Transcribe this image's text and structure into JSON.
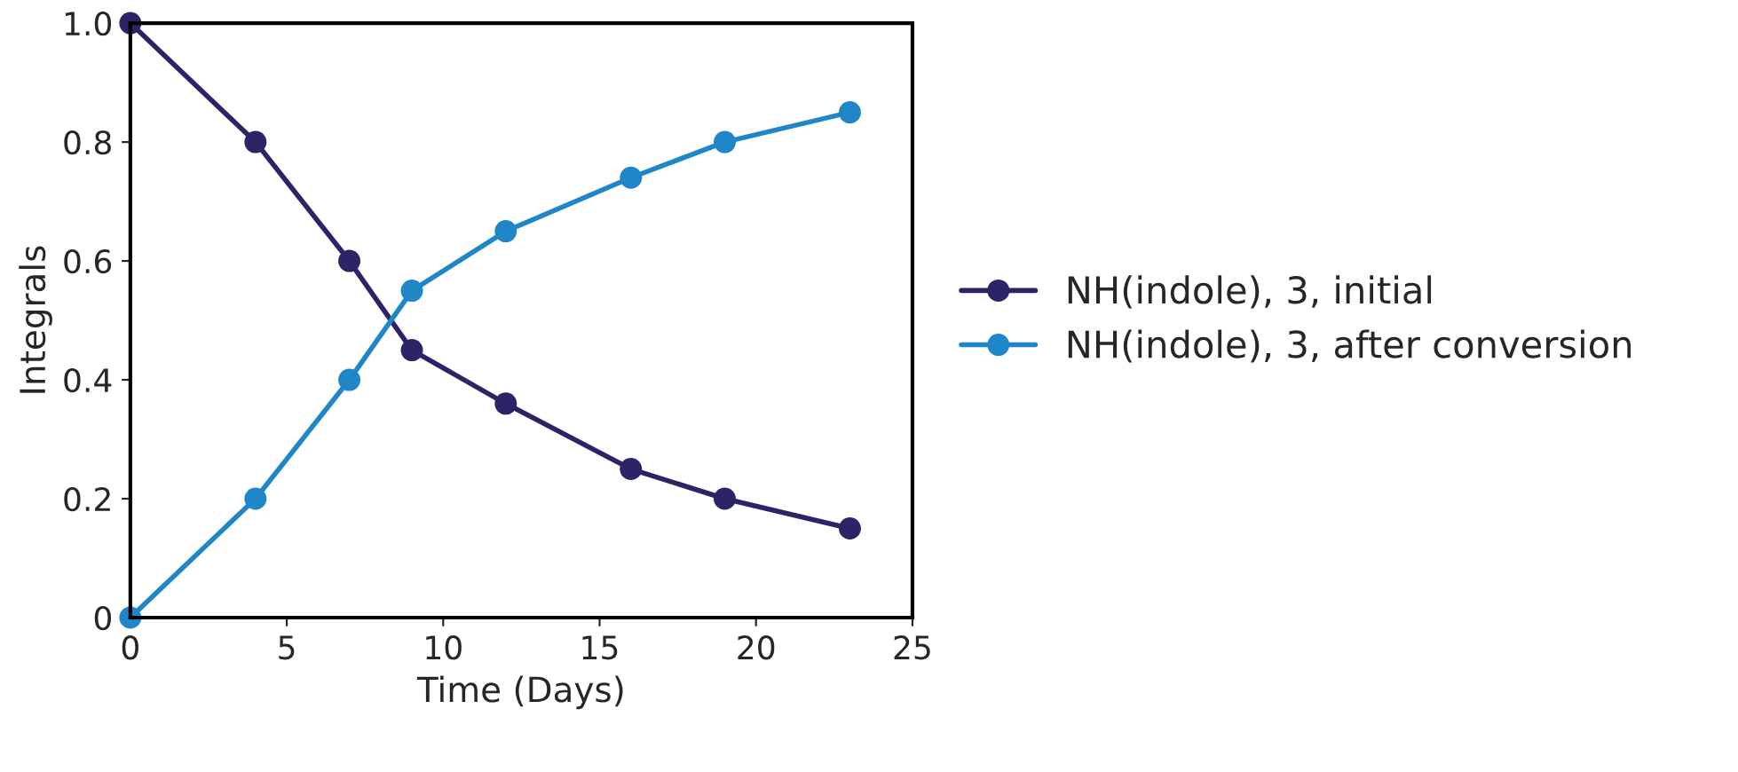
{
  "chart_data": {
    "type": "line",
    "xlabel": "Time (Days)",
    "ylabel": "Integrals",
    "x": [
      0,
      4,
      7,
      9,
      12,
      16,
      19,
      23
    ],
    "series": [
      {
        "name": "NH(indole), 3, initial",
        "color": "#2b2466",
        "values": [
          1.0,
          0.8,
          0.6,
          0.45,
          0.36,
          0.25,
          0.2,
          0.15
        ]
      },
      {
        "name": "NH(indole), 3, after conversion",
        "color": "#1f86c8",
        "values": [
          0,
          0.2,
          0.4,
          0.55,
          0.65,
          0.74,
          0.8,
          0.85
        ]
      }
    ],
    "xlim": [
      0,
      25
    ],
    "xticks": [
      0,
      5,
      10,
      15,
      20,
      25
    ],
    "ylim": [
      0,
      1.0
    ],
    "yticks": [
      {
        "value": 0,
        "label": "0"
      },
      {
        "value": 0.2,
        "label": "0.2"
      },
      {
        "value": 0.4,
        "label": "0.4"
      },
      {
        "value": 0.6,
        "label": "0.6"
      },
      {
        "value": 0.8,
        "label": "0.8"
      },
      {
        "value": 1.0,
        "label": "1.0"
      }
    ],
    "grid": false,
    "legend": "right",
    "marker": "circle",
    "line_style": "solid"
  }
}
